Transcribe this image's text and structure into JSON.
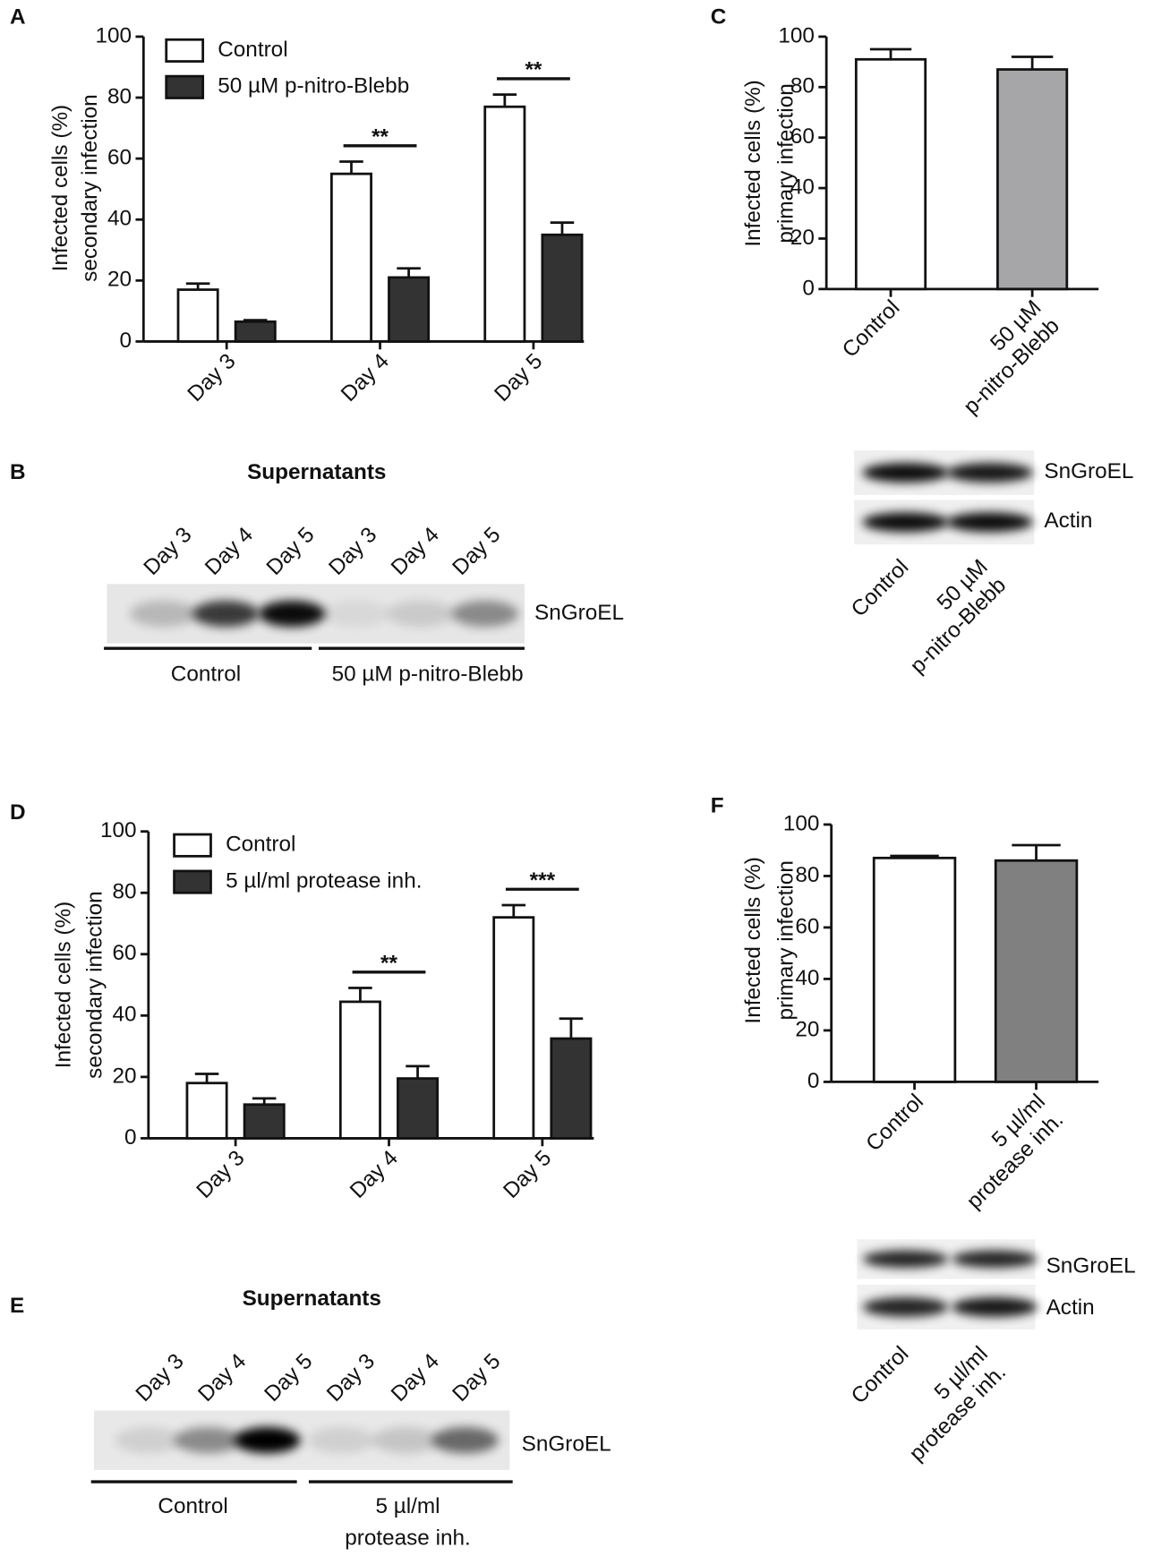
{
  "panels": [
    "A",
    "B",
    "C",
    "D",
    "E",
    "F"
  ],
  "chart_data": [
    {
      "type": "bar",
      "ylabel": [
        "Infected cells (%)",
        "secondary infection"
      ],
      "categories": [
        [
          "Day 3"
        ],
        [
          "Day 4"
        ],
        [
          "Day 5"
        ]
      ],
      "series": [
        {
          "name": "Control",
          "color": "#ffffff",
          "values": [
            17,
            55,
            77
          ],
          "errors": [
            2,
            4,
            4
          ]
        },
        {
          "name": "50 µM p-nitro-Blebb",
          "color": "#333333",
          "values": [
            6.5,
            21,
            35
          ],
          "errors": [
            0.5,
            3,
            4
          ]
        }
      ],
      "annotations": [
        null,
        "**",
        "**"
      ],
      "ylim": [
        0,
        100
      ],
      "yticks": [
        0,
        20,
        40,
        60,
        80,
        100
      ]
    },
    {
      "type": "bar",
      "ylabel": [
        "Infected cells (%)",
        "primary infection"
      ],
      "categories": [
        [
          "Control"
        ],
        [
          "50 µM",
          "p-nitro-Blebb"
        ]
      ],
      "values": [
        91,
        87
      ],
      "errors": [
        4,
        5
      ],
      "colors": [
        "#ffffff",
        "#a6a6a8"
      ],
      "ylim": [
        0,
        100
      ],
      "yticks": [
        0,
        20,
        40,
        60,
        80,
        100
      ]
    },
    {
      "type": "bar",
      "ylabel": [
        "Infected cells (%)",
        "secondary infection"
      ],
      "categories": [
        [
          "Day 3"
        ],
        [
          "Day 4"
        ],
        [
          "Day 5"
        ]
      ],
      "series": [
        {
          "name": "Control",
          "color": "#ffffff",
          "values": [
            18,
            44.5,
            72
          ],
          "errors": [
            3,
            4.5,
            4
          ]
        },
        {
          "name": "5 µl/ml protease inh.",
          "color": "#333333",
          "values": [
            11,
            19.5,
            32.5
          ],
          "errors": [
            2,
            4,
            6.5
          ]
        }
      ],
      "annotations": [
        null,
        "**",
        "***"
      ],
      "ylim": [
        0,
        100
      ],
      "yticks": [
        0,
        20,
        40,
        60,
        80,
        100
      ]
    },
    {
      "type": "bar",
      "ylabel": [
        "Infected cells (%)",
        "primary infection"
      ],
      "categories": [
        [
          "Control"
        ],
        [
          "5 µl/ml",
          "protease inh."
        ]
      ],
      "values": [
        87,
        86
      ],
      "errors": [
        0.8,
        6
      ],
      "colors": [
        "#ffffff",
        "#808080"
      ],
      "ylim": [
        0,
        100
      ],
      "yticks": [
        0,
        20,
        40,
        60,
        80,
        100
      ]
    }
  ],
  "blots": [
    {
      "title": "Supernatants",
      "lanes": [
        [
          "Day 3"
        ],
        [
          "Day 4"
        ],
        [
          "Day 5"
        ],
        [
          "Day 3"
        ],
        [
          "Day 4"
        ],
        [
          "Day 5"
        ]
      ],
      "proteins": [
        "SnGroEL"
      ],
      "groups": [
        [
          "Control"
        ],
        [
          "50 µM p-nitro-Blebb"
        ]
      ]
    },
    {
      "lanes": [
        [
          "Control"
        ],
        [
          "50 µM",
          "p-nitro-Blebb"
        ]
      ],
      "proteins": [
        "SnGroEL",
        "Actin"
      ]
    },
    {
      "title": "Supernatants",
      "lanes": [
        [
          "Day 3"
        ],
        [
          "Day 4"
        ],
        [
          "Day 5"
        ],
        [
          "Day 3"
        ],
        [
          "Day 4"
        ],
        [
          "Day 5"
        ]
      ],
      "proteins": [
        "SnGroEL"
      ],
      "groups": [
        [
          "Control"
        ],
        [
          "5 µl/ml",
          "protease inh."
        ]
      ]
    },
    {
      "lanes": [
        [
          "Control"
        ],
        [
          "5 µl/ml",
          "protease inh."
        ]
      ],
      "proteins": [
        "SnGroEL",
        "Actin"
      ]
    }
  ]
}
